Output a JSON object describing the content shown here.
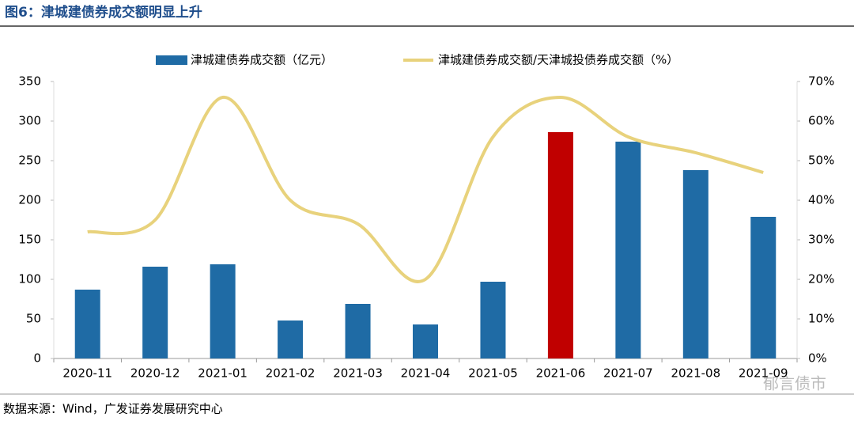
{
  "header": {
    "title": "图6：津城建债券成交额明显上升"
  },
  "chart_data": {
    "type": "bar-line",
    "categories": [
      "2020-11",
      "2020-12",
      "2021-01",
      "2021-02",
      "2021-03",
      "2021-04",
      "2021-05",
      "2021-06",
      "2021-07",
      "2021-08",
      "2021-09"
    ],
    "series": [
      {
        "name": "津城建债券成交额（亿元）",
        "type": "bar",
        "color": "#1f6ba5",
        "colors": [
          "#1f6ba5",
          "#1f6ba5",
          "#1f6ba5",
          "#1f6ba5",
          "#1f6ba5",
          "#1f6ba5",
          "#1f6ba5",
          "#c00000",
          "#1f6ba5",
          "#1f6ba5",
          "#1f6ba5"
        ],
        "values": [
          87,
          116,
          119,
          48,
          69,
          43,
          97,
          286,
          274,
          238,
          179
        ]
      },
      {
        "name": "津城建债券成交额/天津城投债券成交额（%）",
        "type": "line",
        "axis": "y2",
        "color": "#e8d27c",
        "values": [
          32,
          35,
          66,
          40,
          34,
          20,
          56,
          66,
          56,
          52,
          47
        ]
      }
    ],
    "ylim": [
      0,
      350
    ],
    "yticks": [
      0,
      50,
      100,
      150,
      200,
      250,
      300,
      350
    ],
    "y2lim": [
      0,
      70
    ],
    "y2ticks": [
      {
        "value": 0,
        "label": "0%"
      },
      {
        "value": 10,
        "label": "10%"
      },
      {
        "value": 20,
        "label": "20%"
      },
      {
        "value": 30,
        "label": "30%"
      },
      {
        "value": 40,
        "label": "40%"
      },
      {
        "value": 50,
        "label": "50%"
      },
      {
        "value": 60,
        "label": "60%"
      },
      {
        "value": 70,
        "label": "70%"
      }
    ],
    "legend": "top"
  },
  "footer": {
    "source": "数据来源：Wind，广发证券发展研究中心",
    "watermark": "郁言债市"
  }
}
